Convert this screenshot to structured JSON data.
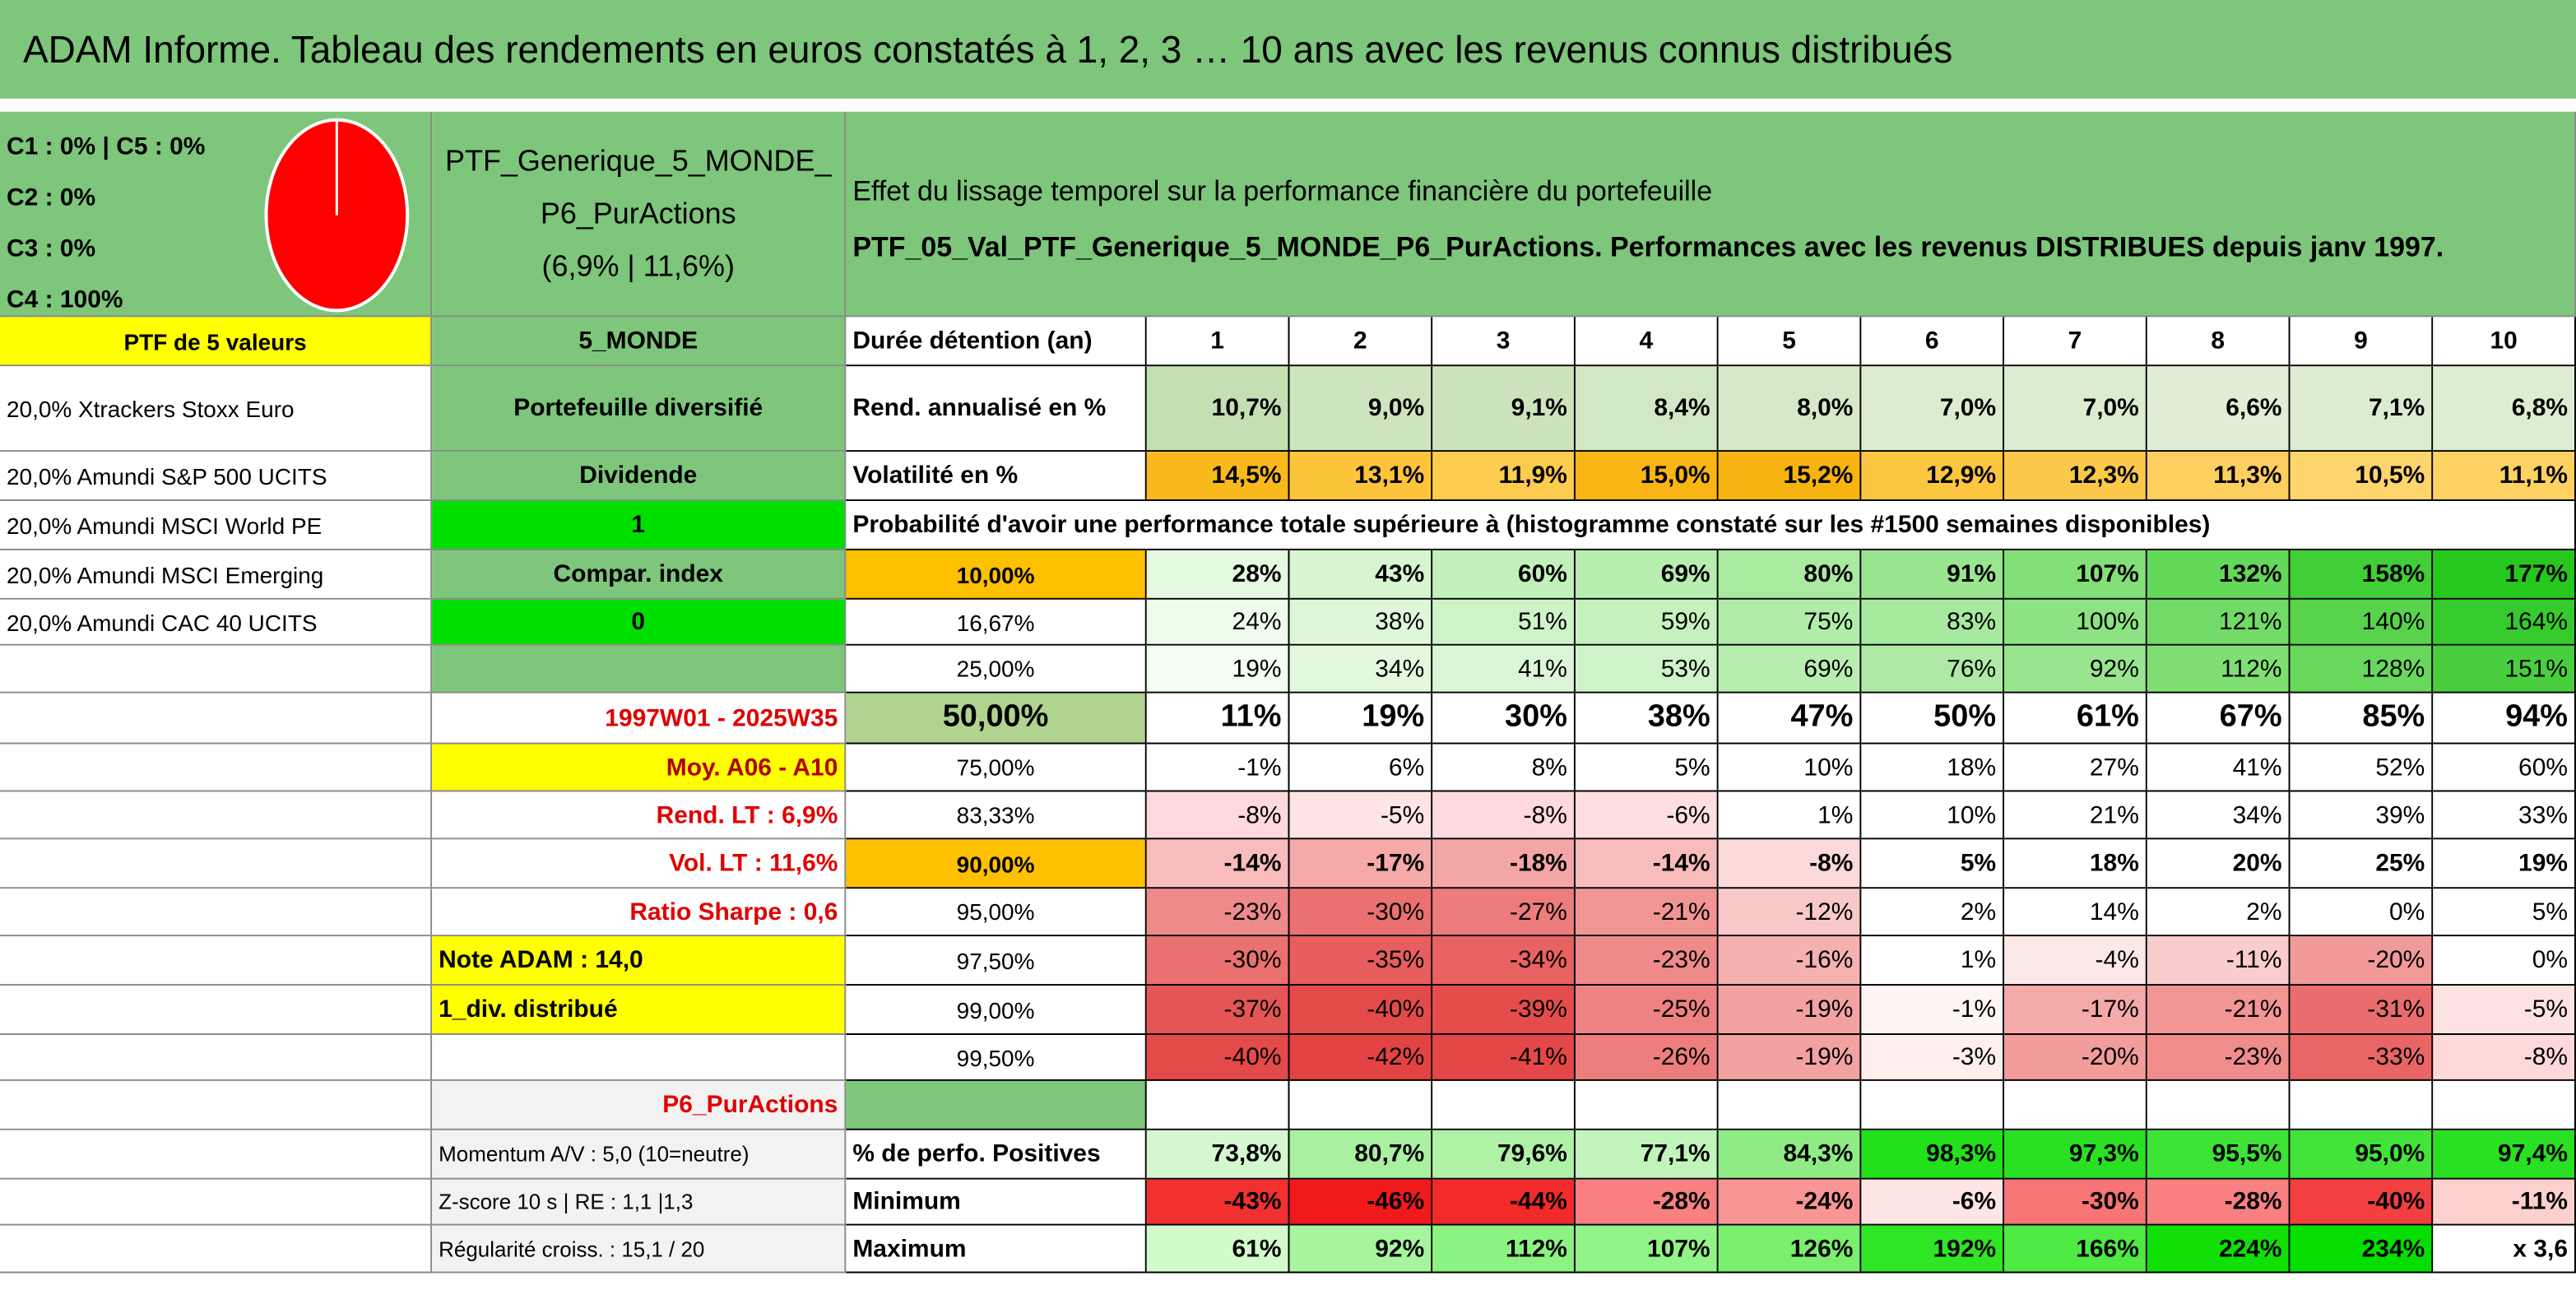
{
  "header": {
    "title": "ADAM Informe. Tableau des rendements en euros constatés à 1, 2, 3 … 10 ans avec les revenus connus distribués"
  },
  "allocation": {
    "lines": [
      "C1 : 0% | C5 : 0%",
      "C2 : 0%",
      "C3 : 0%",
      "C4 : 100%"
    ]
  },
  "portfolio": {
    "name": "PTF_Generique_5_MONDE_P6_PurActions",
    "stats": "(6,9% | 11,6%)"
  },
  "description": [
    "Effet du lissage temporel sur la performance financière du portefeuille",
    "PTF_05_Val_PTF_Generique_5_MONDE_P6_PurActions. Performances avec les revenus DISTRIBUES depuis janv 1997."
  ],
  "table": {
    "rows": [
      [
        "PTF de 5 valeurs",
        "5_MONDE",
        "Durée détention (an)",
        1,
        2,
        3,
        4,
        5,
        6,
        7,
        8,
        9,
        10
      ],
      [
        "20,0% Xtrackers Stoxx Euro",
        "Portefeuille diversifié",
        "Rend. annualisé en %",
        "10,7%",
        "9,0%",
        "9,1%",
        "8,4%",
        "8,0%",
        "7,0%",
        "7,0%",
        "6,6%",
        "7,1%",
        "6,8%"
      ],
      [
        "20,0% Amundi S&P 500 UCITS",
        "Dividende",
        "Volatilité en %",
        "14,5%",
        "13,1%",
        "11,9%",
        "15,0%",
        "15,2%",
        "12,9%",
        "12,3%",
        "11,3%",
        "10,5%",
        "11,1%"
      ],
      [
        "20,0% Amundi MSCI World PE",
        1,
        "Probabilité d'avoir une performance totale supérieure à (histogramme constaté sur les #1500 semaines disponibles)",
        null,
        null,
        null,
        null,
        null,
        null,
        null,
        null,
        null,
        null
      ],
      [
        "20,0% Amundi MSCI Emerging",
        "Compar. index",
        "10,00%",
        "28%",
        "43%",
        "60%",
        "69%",
        "80%",
        "91%",
        "107%",
        "132%",
        "158%",
        "177%"
      ],
      [
        "20,0% Amundi CAC 40 UCITS",
        0,
        "16,67%",
        "24%",
        "38%",
        "51%",
        "59%",
        "75%",
        "83%",
        "100%",
        "121%",
        "140%",
        "164%"
      ],
      [
        null,
        null,
        "25,00%",
        "19%",
        "34%",
        "41%",
        "53%",
        "69%",
        "76%",
        "92%",
        "112%",
        "128%",
        "151%"
      ],
      [
        null,
        "1997W01 - 2025W35",
        "50,00%",
        "11%",
        "19%",
        "30%",
        "38%",
        "47%",
        "50%",
        "61%",
        "67%",
        "85%",
        "94%"
      ],
      [
        null,
        "Moy. A06 - A10",
        "75,00%",
        "-1%",
        "6%",
        "8%",
        "5%",
        "10%",
        "18%",
        "27%",
        "41%",
        "52%",
        "60%"
      ],
      [
        null,
        "Rend. LT : 6,9%",
        "83,33%",
        "-8%",
        "-5%",
        "-8%",
        "-6%",
        "1%",
        "10%",
        "21%",
        "34%",
        "39%",
        "33%"
      ],
      [
        null,
        "Vol. LT : 11,6%",
        "90,00%",
        "-14%",
        "-17%",
        "-18%",
        "-14%",
        "-8%",
        "5%",
        "18%",
        "20%",
        "25%",
        "19%"
      ],
      [
        null,
        "Ratio Sharpe : 0,6",
        "95,00%",
        "-23%",
        "-30%",
        "-27%",
        "-21%",
        "-12%",
        "2%",
        "14%",
        "2%",
        "0%",
        "5%"
      ],
      [
        null,
        "Note ADAM : 14,0",
        "97,50%",
        "-30%",
        "-35%",
        "-34%",
        "-23%",
        "-16%",
        "1%",
        "-4%",
        "-11%",
        "-20%",
        "0%"
      ],
      [
        null,
        "1_div. distribué",
        "99,00%",
        "-37%",
        "-40%",
        "-39%",
        "-25%",
        "-19%",
        "-1%",
        "-17%",
        "-21%",
        "-31%",
        "-5%"
      ],
      [
        null,
        null,
        "99,50%",
        "-40%",
        "-42%",
        "-41%",
        "-26%",
        "-19%",
        "-3%",
        "-20%",
        "-23%",
        "-33%",
        "-8%"
      ],
      [
        null,
        "P6_PurActions",
        null,
        null,
        null,
        null,
        null,
        null,
        null,
        null,
        null,
        null,
        null
      ],
      [
        null,
        "Momentum A/V : 5,0 (10=neutre)",
        "% de perfo. Positives",
        "73,8%",
        "80,7%",
        "79,6%",
        "77,1%",
        "84,3%",
        "98,3%",
        "97,3%",
        "95,5%",
        "95,0%",
        "97,4%"
      ],
      [
        null,
        "Z-score 10 s | RE : 1,1 |1,3",
        "Minimum",
        "-43%",
        "-46%",
        "-44%",
        "-28%",
        "-24%",
        "-6%",
        "-30%",
        "-28%",
        "-40%",
        "-11%"
      ],
      [
        null,
        "Régularité croiss. : 15,1 / 20",
        "Maximum",
        "61%",
        "92%",
        "112%",
        "107%",
        "126%",
        "192%",
        "166%",
        "224%",
        "234%",
        "x 3,6"
      ]
    ],
    "fills": [
      [
        "#ffff00",
        "#7dc67b",
        "#fff",
        "#fff",
        "#fff",
        "#fff",
        "#fff",
        "#fff",
        "#fff",
        "#fff",
        "#fff",
        "#fff",
        "#fff"
      ],
      [
        "#fff",
        "#7dc67b",
        "#fff",
        "#c3dfb3",
        "#cde4be",
        "#cce3bd",
        "#d2e7c5",
        "#d5e8c8",
        "#dbecd0",
        "#dbecd0",
        "#dfeed4",
        "#dbecd0",
        "#ddedd2"
      ],
      [
        "#fff",
        "#7dc67b",
        "#fff",
        "#f9b91c",
        "#fcc43a",
        "#fdcb4e",
        "#f8b514",
        "#f7b410",
        "#fcc640",
        "#fcc84a",
        "#fdcf5e",
        "#fed46c",
        "#fdd162"
      ],
      [
        "#fff",
        "#00e000",
        "#fff",
        "#fff",
        "#fff",
        "#fff",
        "#fff",
        "#fff",
        "#fff",
        "#fff",
        "#fff",
        "#fff",
        "#fff"
      ],
      [
        "#fff",
        "#7dc67b",
        "#ffc000",
        "#e4f9e0",
        "#d6f5d0",
        "#c2f0bb",
        "#b7edaf",
        "#a9e9a0",
        "#9ae690",
        "#83e078",
        "#64d859",
        "#40cf36",
        "#27c81d"
      ],
      [
        "#fff",
        "#00e000",
        "#fff",
        "#eefcec",
        "#def7da",
        "#cff3c9",
        "#c6f1bf",
        "#b1eca9",
        "#a7e99e",
        "#8de283",
        "#72db67",
        "#57d34c",
        "#36cb2c"
      ],
      [
        "#fff",
        "#7dc67b",
        "#fff",
        "#f3fdf1",
        "#e3f8df",
        "#dbf6d6",
        "#cef3c8",
        "#b8edb0",
        "#aeeaa5",
        "#99e58f",
        "#7fdf73",
        "#68d85d",
        "#49cf3e"
      ],
      [
        "#fff",
        "#fff",
        "#b0d38f",
        "#fff",
        "#fff",
        "#fff",
        "#fff",
        "#fff",
        "#fff",
        "#fff",
        "#fff",
        "#fff",
        "#fff"
      ],
      [
        "#fff",
        "#ffff00",
        "#fff",
        "#fff",
        "#fff",
        "#fff",
        "#fff",
        "#fff",
        "#fff",
        "#fff",
        "#fff",
        "#fff",
        "#fff"
      ],
      [
        "#fff",
        "#fff",
        "#fff",
        "#ffd9dc",
        "#ffe4e6",
        "#ffd9dc",
        "#ffdee0",
        "#fff",
        "#fff",
        "#fff",
        "#fff",
        "#fff",
        "#fff"
      ],
      [
        "#fff",
        "#fff",
        "#ffc000",
        "#f8bcbc",
        "#f5a9a9",
        "#f4a6a6",
        "#f8bcbc",
        "#fcdada",
        "#fff",
        "#fff",
        "#fff",
        "#fff",
        "#fff"
      ],
      [
        "#fff",
        "#fff",
        "#fff",
        "#ef8a8a",
        "#eb7070",
        "#ed7c7c",
        "#f19494",
        "#f9c9c9",
        "#fff",
        "#fff",
        "#fff",
        "#fff",
        "#fff"
      ],
      [
        "#fff",
        "#ffff00",
        "#fff",
        "#eb7070",
        "#e85d5d",
        "#e86262",
        "#ef8a8a",
        "#f5b0b0",
        "#fff",
        "#fde8e8",
        "#f9cdcd",
        "#f29a9a",
        "#fff"
      ],
      [
        "#fff",
        "#ffff00",
        "#fff",
        "#e65555",
        "#e44a4a",
        "#e54d4d",
        "#ee8282",
        "#f3a2a2",
        "#fef5f5",
        "#f5aaaa",
        "#f19595",
        "#ea6c6c",
        "#fde2e2"
      ],
      [
        "#fff",
        "#fff",
        "#fff",
        "#e44a4a",
        "#e34343",
        "#e44747",
        "#ee7e7e",
        "#f3a2a2",
        "#feeeee",
        "#f29c9c",
        "#f08c8c",
        "#e96565",
        "#fcd8d8"
      ],
      [
        "#fff",
        "#f2f2f2",
        "#7dc67b",
        "#fff",
        "#fff",
        "#fff",
        "#fff",
        "#fff",
        "#fff",
        "#fff",
        "#fff",
        "#fff",
        "#fff"
      ],
      [
        "#fff",
        "#f2f2f2",
        "#fff",
        "#d4f7d0",
        "#a9f0a1",
        "#b0f1a8",
        "#c1f4ba",
        "#8fec85",
        "#22e01a",
        "#2ae022",
        "#3de335",
        "#42e43a",
        "#2ae022"
      ],
      [
        "#fff",
        "#f2f2f2",
        "#fff",
        "#f23030",
        "#f01a1a",
        "#f22a2a",
        "#f88080",
        "#f99595",
        "#ffe6e6",
        "#f77575",
        "#f88080",
        "#f33f3f",
        "#fdd0d0"
      ],
      [
        "#fff",
        "#f2f2f2",
        "#fff",
        "#d2fbcc",
        "#a6f59d",
        "#8cf281",
        "#92f388",
        "#7aef6e",
        "#2fe624",
        "#4fea44",
        "#10e005",
        "#05de00",
        "#fff"
      ]
    ]
  }
}
